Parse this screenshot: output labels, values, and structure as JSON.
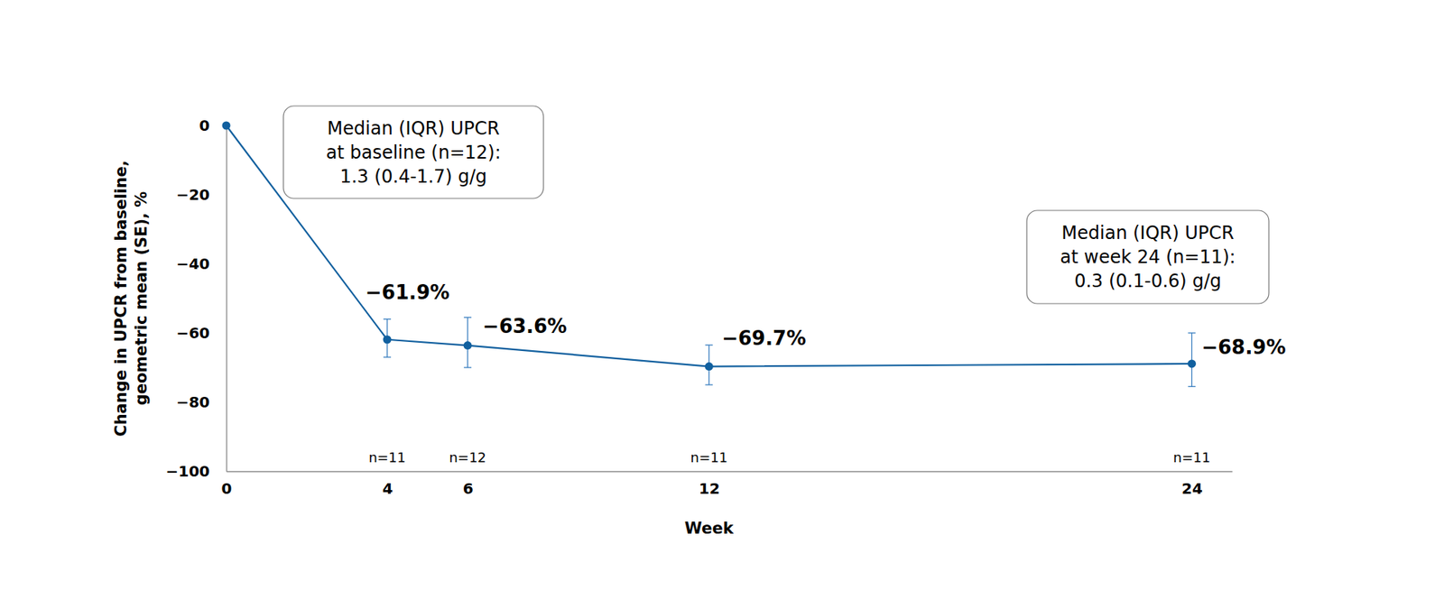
{
  "chart_data": {
    "type": "line",
    "xlabel": "Week",
    "ylabel": [
      "Change in UPCR from baseline,",
      "geometric mean (SE), %"
    ],
    "x": [
      0,
      4,
      6,
      12,
      24
    ],
    "values": [
      0,
      -61.9,
      -63.6,
      -69.7,
      -68.9
    ],
    "error_lower": [
      null,
      -67,
      -70,
      -75,
      -75.5
    ],
    "error_upper": [
      null,
      -56,
      -55.5,
      -63.5,
      -60
    ],
    "value_labels": [
      null,
      "−61.9%",
      "−63.6%",
      "−69.7%",
      "−68.9%"
    ],
    "n_labels": [
      null,
      "n=11",
      "n=12",
      "n=11",
      "n=11"
    ],
    "data_labels": true,
    "color": "#11609f",
    "marker": "circle",
    "line_style": "solid",
    "grid": false,
    "xlim": [
      0,
      25
    ],
    "xticks": [
      0,
      4,
      6,
      12,
      24
    ],
    "ylim": [
      -100,
      0
    ],
    "yticks": [
      {
        "value": -100,
        "label": "−100"
      },
      {
        "value": -80,
        "label": "−80"
      },
      {
        "value": -60,
        "label": "−60"
      },
      {
        "value": -40,
        "label": "−40"
      },
      {
        "value": -20,
        "label": "−20"
      },
      0
    ],
    "annotations": [
      {
        "lines": [
          "Median (IQR) UPCR",
          "at baseline (n=12):",
          "1.3 (0.4-1.7) g/g"
        ]
      },
      {
        "lines": [
          "Median (IQR) UPCR",
          "at week 24 (n=11):",
          "0.3 (0.1-0.6) g/g"
        ]
      }
    ]
  }
}
